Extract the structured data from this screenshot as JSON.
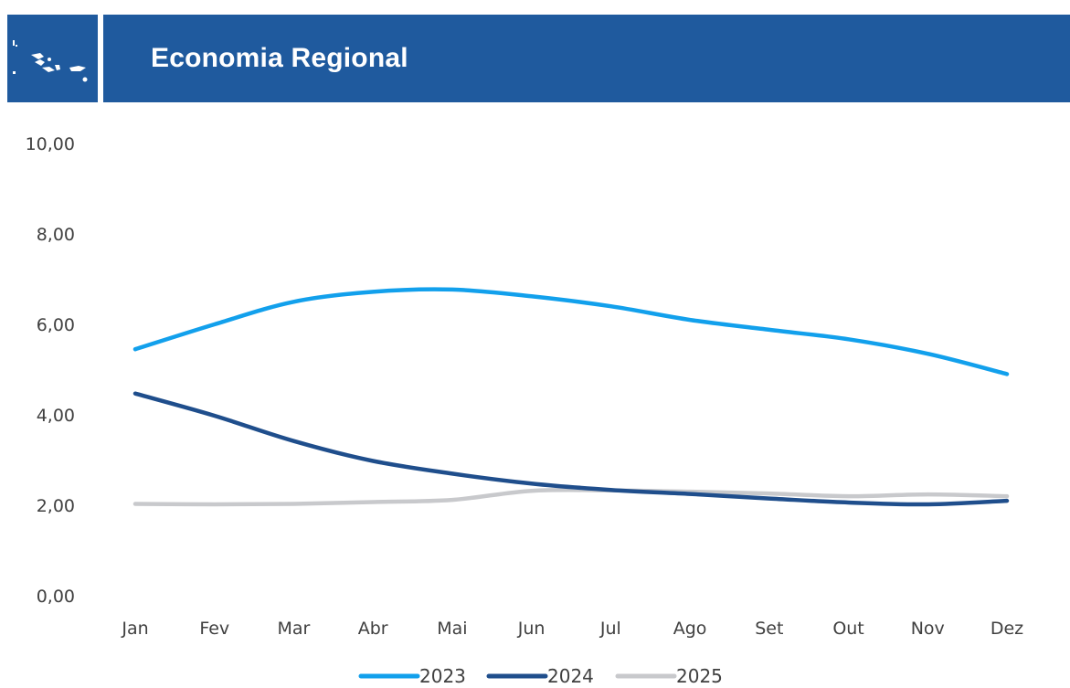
{
  "header": {
    "title": "Economia Regional",
    "logo_icon": "azores-islands-logo-icon",
    "bar_color": "#1f5a9e"
  },
  "chart_data": {
    "type": "line",
    "title": "",
    "xlabel": "",
    "ylabel": "",
    "categories": [
      "Jan",
      "Fev",
      "Mar",
      "Abr",
      "Mai",
      "Jun",
      "Jul",
      "Ago",
      "Set",
      "Out",
      "Nov",
      "Dez"
    ],
    "ylim": [
      0,
      10
    ],
    "yticks": [
      "0,00",
      "2,00",
      "4,00",
      "6,00",
      "8,00",
      "10,00"
    ],
    "grid": false,
    "legend_position": "bottom",
    "series": [
      {
        "name": "2023",
        "color": "#12a0ec",
        "values": [
          5.45,
          6.0,
          6.5,
          6.72,
          6.77,
          6.62,
          6.4,
          6.1,
          5.88,
          5.67,
          5.35,
          4.9
        ]
      },
      {
        "name": "2024",
        "color": "#1f4e8c",
        "values": [
          4.47,
          3.98,
          3.42,
          2.98,
          2.7,
          2.48,
          2.34,
          2.25,
          2.15,
          2.06,
          2.02,
          2.1
        ]
      },
      {
        "name": "2025",
        "color": "#c8c9cc",
        "values": [
          2.03,
          2.02,
          2.03,
          2.07,
          2.12,
          2.32,
          2.33,
          2.3,
          2.26,
          2.2,
          2.24,
          2.2
        ]
      }
    ]
  }
}
